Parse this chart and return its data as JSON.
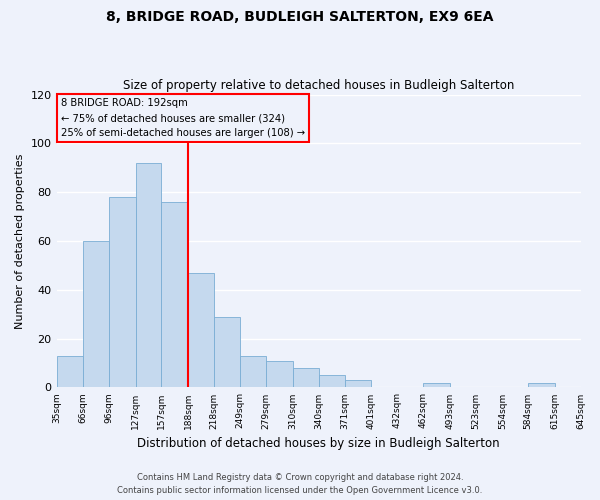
{
  "title": "8, BRIDGE ROAD, BUDLEIGH SALTERTON, EX9 6EA",
  "subtitle": "Size of property relative to detached houses in Budleigh Salterton",
  "xlabel": "Distribution of detached houses by size in Budleigh Salterton",
  "ylabel": "Number of detached properties",
  "bar_color": "#c5d9ee",
  "bar_edge_color": "#7aadd4",
  "vline_x": 188,
  "vline_color": "red",
  "annotation_title": "8 BRIDGE ROAD: 192sqm",
  "annotation_line1": "← 75% of detached houses are smaller (324)",
  "annotation_line2": "25% of semi-detached houses are larger (108) →",
  "bins": [
    35,
    66,
    96,
    127,
    157,
    188,
    218,
    249,
    279,
    310,
    340,
    371,
    401,
    432,
    462,
    493,
    523,
    554,
    584,
    615,
    645
  ],
  "counts": [
    13,
    60,
    78,
    92,
    76,
    47,
    29,
    13,
    11,
    8,
    5,
    3,
    0,
    0,
    2,
    0,
    0,
    0,
    2,
    0
  ],
  "xlim_left": 35,
  "xlim_right": 645,
  "ylim_top": 120,
  "yticks": [
    0,
    20,
    40,
    60,
    80,
    100,
    120
  ],
  "tick_labels": [
    "35sqm",
    "66sqm",
    "96sqm",
    "127sqm",
    "157sqm",
    "188sqm",
    "218sqm",
    "249sqm",
    "279sqm",
    "310sqm",
    "340sqm",
    "371sqm",
    "401sqm",
    "432sqm",
    "462sqm",
    "493sqm",
    "523sqm",
    "554sqm",
    "584sqm",
    "615sqm",
    "645sqm"
  ],
  "footer1": "Contains HM Land Registry data © Crown copyright and database right 2024.",
  "footer2": "Contains public sector information licensed under the Open Government Licence v3.0.",
  "background_color": "#eef2fb"
}
